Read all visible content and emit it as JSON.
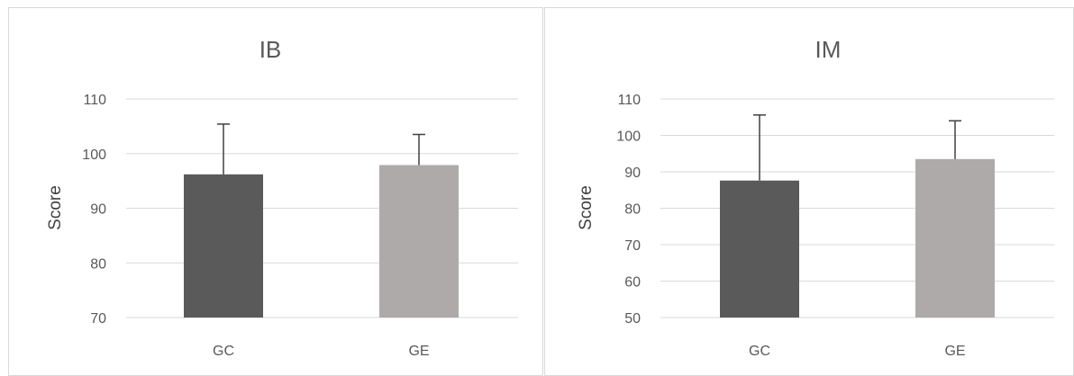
{
  "chart_data": [
    {
      "type": "bar",
      "title": "IB",
      "xlabel": "",
      "ylabel": "Score",
      "ylim": [
        70,
        110
      ],
      "yticks": [
        70,
        80,
        90,
        100,
        110
      ],
      "categories": [
        "GC",
        "GE"
      ],
      "values": [
        96.2,
        97.9
      ],
      "error_upper": [
        9.2,
        5.6
      ],
      "colors": [
        "#5a5a5a",
        "#aeaaaa"
      ],
      "grid": true
    },
    {
      "type": "bar",
      "title": "IM",
      "xlabel": "",
      "ylabel": "Score",
      "ylim": [
        50,
        110
      ],
      "yticks": [
        50,
        60,
        70,
        80,
        90,
        100,
        110
      ],
      "categories": [
        "GC",
        "GE"
      ],
      "values": [
        87.6,
        93.5
      ],
      "error_upper": [
        18.0,
        10.5
      ],
      "colors": [
        "#5a5a5a",
        "#aeaaaa"
      ],
      "grid": true
    }
  ]
}
